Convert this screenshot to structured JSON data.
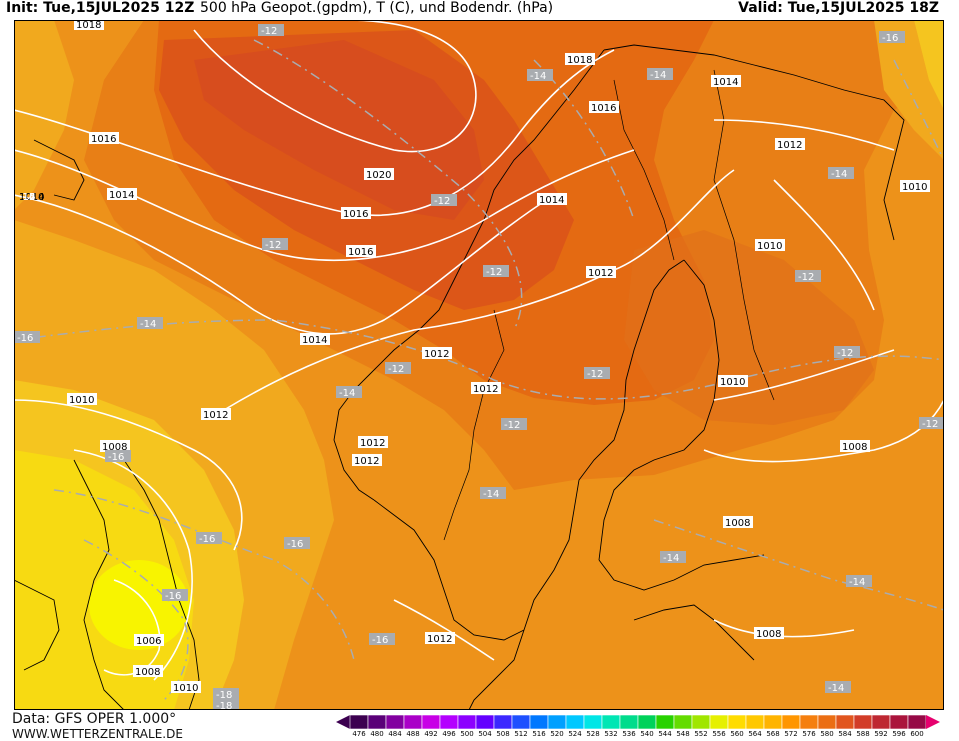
{
  "header": {
    "init": "Init: Tue,15JUL2025 12Z",
    "title": "500 hPa Geopot.(gpdm), T (C), und Bodendr. (hPa)",
    "valid": "Valid: Tue,15JUL2025 18Z"
  },
  "footer": {
    "data_source": "Data: GFS OPER 1.000°",
    "website": "WWW.WETTERZENTRALE.DE"
  },
  "legend": {
    "values": [
      "476",
      "480",
      "484",
      "488",
      "492",
      "496",
      "500",
      "504",
      "508",
      "512",
      "516",
      "520",
      "524",
      "528",
      "532",
      "536",
      "540",
      "544",
      "548",
      "552",
      "556",
      "560",
      "564",
      "568",
      "572",
      "576",
      "580",
      "584",
      "588",
      "592",
      "596",
      "600"
    ],
    "colors": [
      "#3c0050",
      "#5a0078",
      "#8200a0",
      "#aa00c8",
      "#c800e6",
      "#b400ff",
      "#8c00ff",
      "#6400ff",
      "#3c28ff",
      "#1e50ff",
      "#0078ff",
      "#00a0ff",
      "#00c8ff",
      "#00e6e6",
      "#00e6b4",
      "#00dc8c",
      "#00d25a",
      "#28d200",
      "#64dc00",
      "#a0e600",
      "#e6f000",
      "#ffdc00",
      "#ffc800",
      "#ffb400",
      "#ff9600",
      "#f57f0f",
      "#eb6e14",
      "#e1551e",
      "#d23c28",
      "#be2832",
      "#aa143c",
      "#960a46"
    ],
    "colors_field": {
      "c564": "#f5c51f",
      "c568": "#f1a91e",
      "c572": "#ed921a",
      "c576": "#e87f16",
      "c580": "#e46a12",
      "c584": "#dc5618",
      "c588": "#d74d1e",
      "c556": "#f8f400",
      "c560": "#f7da12"
    }
  },
  "pressure_labels": [
    "1018",
    "1016",
    "1014",
    "1020",
    "1016",
    "1016",
    "1014",
    "1018",
    "1016",
    "1014",
    "1014",
    "1012",
    "1012",
    "1014",
    "1010",
    "1012",
    "1010",
    "1010",
    "1012",
    "1012",
    "1012",
    "1012",
    "1008",
    "1008",
    "1008",
    "1010",
    "1006",
    "1008",
    "1010",
    "1012",
    "1008",
    "1010"
  ],
  "temperature_labels": [
    "-12",
    "-14",
    "-14",
    "-16",
    "-12",
    "-12",
    "-14",
    "-12",
    "-12",
    "-14",
    "-16",
    "-14",
    "-12",
    "-12",
    "-12",
    "-14",
    "-12",
    "-12",
    "-12",
    "-14",
    "-16",
    "-16",
    "-16",
    "-16",
    "-14",
    "-14",
    "-16",
    "-14",
    "-16",
    "-18",
    "-18",
    "-16",
    "-12"
  ]
}
